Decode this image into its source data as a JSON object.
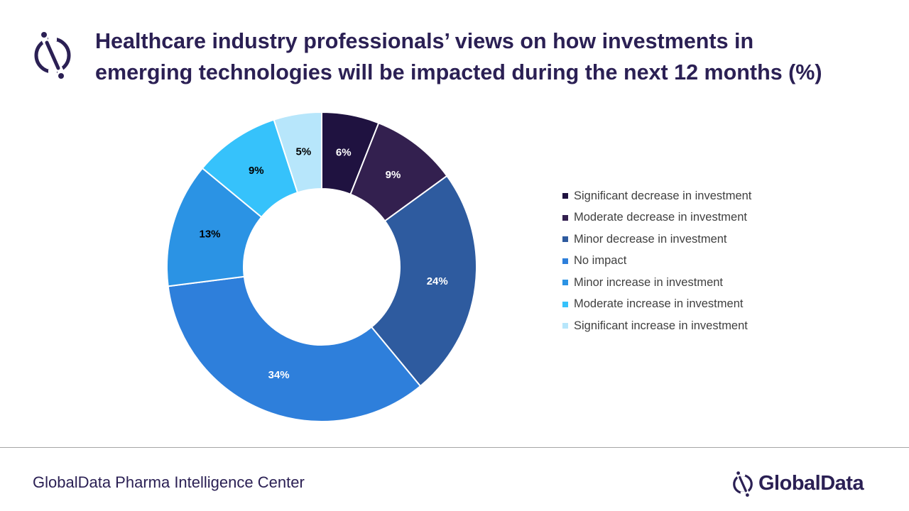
{
  "header": {
    "title_line1": "Healthcare industry professionals’ views on how investments in",
    "title_line2": "emerging technologies will be impacted during the next 12 months (%)",
    "logo_icon": "globaldata-logo-icon"
  },
  "chart_data": {
    "type": "pie",
    "donut": true,
    "title": "Healthcare industry professionals’ views on how investments in emerging technologies will be impacted during the next 12 months (%)",
    "categories": [
      "Significant decrease in investment",
      "Moderate decrease in investment",
      "Minor decrease in investment",
      "No impact",
      "Minor increase in investment",
      "Moderate increase in investment",
      "Significant increase in investment"
    ],
    "values": [
      6,
      9,
      24,
      34,
      13,
      9,
      5
    ],
    "data_labels": [
      "6%",
      "9%",
      "24%",
      "34%",
      "13%",
      "9%",
      "5%"
    ],
    "colors": [
      "#1f1240",
      "#33204f",
      "#2e5b9f",
      "#2e7fdb",
      "#2b93e4",
      "#36c2fb",
      "#b7e6fb"
    ],
    "label_colors": [
      "#ffffff",
      "#ffffff",
      "#ffffff",
      "#ffffff",
      "#000000",
      "#000000",
      "#000000"
    ],
    "legend_position": "right"
  },
  "footer": {
    "source": "GlobalData Pharma Intelligence Center",
    "brand": "GlobalData",
    "brand_icon": "globaldata-logo-icon"
  }
}
